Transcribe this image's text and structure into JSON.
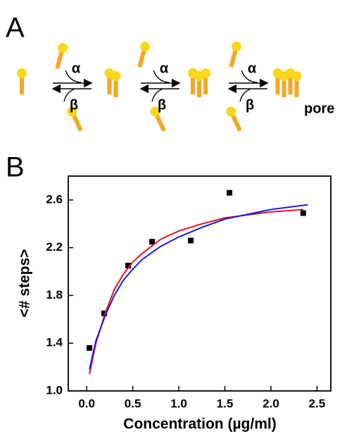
{
  "panel_labels": [
    "A",
    "B"
  ],
  "diagram": {
    "steps": [
      {
        "forward": "α",
        "backward": "β"
      },
      {
        "forward": "α",
        "backward": "β"
      },
      {
        "forward": "α",
        "backward": "β"
      }
    ],
    "product": "pore"
  },
  "chart_data": {
    "type": "scatter",
    "x_label": "Concentration (µg/ml)",
    "y_label": "<#  steps>",
    "xlim": [
      -0.2,
      2.65
    ],
    "ylim": [
      1.0,
      2.8
    ],
    "xticks": [
      {
        "value": 0,
        "label": "0.0"
      },
      0.5,
      {
        "value": 1,
        "label": "1.0"
      },
      1.5,
      {
        "value": 2,
        "label": "2.0"
      },
      2.5
    ],
    "yticks": [
      {
        "value": 1,
        "label": "1.0"
      },
      1.4,
      1.8,
      2.2,
      2.6
    ],
    "series": [
      {
        "type": "scatter",
        "color": "#000000",
        "x": [
          0.03,
          0.19,
          0.45,
          0.71,
          1.13,
          1.55,
          2.35
        ],
        "values": [
          1.36,
          1.65,
          2.05,
          2.25,
          2.26,
          2.66,
          2.49
        ]
      },
      {
        "type": "line",
        "color": "#e8141b",
        "x": [
          0.03,
          0.1,
          0.2,
          0.3,
          0.4,
          0.5,
          0.6,
          0.8,
          1.0,
          1.25,
          1.5,
          2.0,
          2.35
        ],
        "values": [
          1.14,
          1.4,
          1.65,
          1.85,
          1.98,
          2.08,
          2.15,
          2.27,
          2.34,
          2.4,
          2.45,
          2.5,
          2.52
        ]
      },
      {
        "type": "line",
        "color": "#1a1ae6",
        "x": [
          0.03,
          0.1,
          0.2,
          0.3,
          0.4,
          0.5,
          0.6,
          0.8,
          1.0,
          1.25,
          1.5,
          2.0,
          2.4
        ],
        "values": [
          1.18,
          1.42,
          1.63,
          1.8,
          1.93,
          2.02,
          2.1,
          2.21,
          2.29,
          2.37,
          2.44,
          2.52,
          2.56
        ]
      }
    ]
  }
}
